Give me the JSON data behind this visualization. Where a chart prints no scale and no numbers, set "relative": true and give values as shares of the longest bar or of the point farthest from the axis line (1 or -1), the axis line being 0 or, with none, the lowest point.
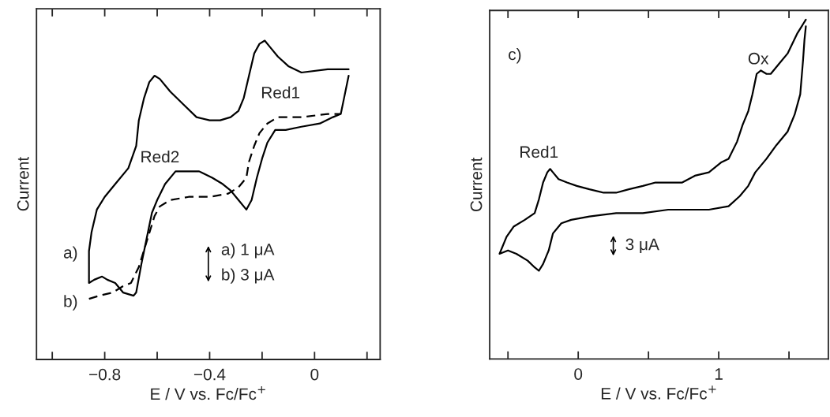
{
  "chart_data": [
    {
      "type": "line",
      "relative": true,
      "xlabel": "E / V vs. Fc/Fc$^{+}$",
      "ylabel": "Current",
      "xlim": [
        -1.06,
        0.25
      ],
      "xticks": [
        {
          "value": -1.0,
          "label": null
        },
        {
          "value": -0.8,
          "label": "−0.8"
        },
        {
          "value": -0.6,
          "label": null
        },
        {
          "value": -0.4,
          "label": "−0.4"
        },
        {
          "value": -0.2,
          "label": null
        },
        {
          "value": 0,
          "label": "0"
        },
        {
          "value": 0.2,
          "label": null
        }
      ],
      "series": [
        {
          "color": "#000000",
          "line_style": "solid",
          "x": [
            0.13,
            0.05,
            -0.05,
            -0.1,
            -0.14,
            -0.17,
            -0.19,
            -0.21,
            -0.23,
            -0.25,
            -0.27,
            -0.29,
            -0.32,
            -0.36,
            -0.4,
            -0.45,
            -0.5,
            -0.55,
            -0.59,
            -0.61,
            -0.63,
            -0.65,
            -0.67,
            -0.68,
            -0.71,
            -0.76,
            -0.8,
            -0.83,
            -0.85,
            -0.86,
            -0.86,
            -0.86,
            -0.84,
            -0.81,
            -0.79,
            -0.76,
            -0.73,
            -0.69,
            -0.68,
            -0.66,
            -0.64,
            -0.62,
            -0.6,
            -0.57,
            -0.53,
            -0.49,
            -0.44,
            -0.39,
            -0.35,
            -0.32,
            -0.29,
            -0.26,
            -0.24,
            -0.22,
            -0.2,
            -0.18,
            -0.15,
            -0.11,
            -0.05,
            0.02,
            0.07,
            0.1,
            0.11,
            0.13
          ],
          "values": [
            0.91,
            0.91,
            0.9,
            0.92,
            0.95,
            0.98,
            1.0,
            0.99,
            0.96,
            0.89,
            0.82,
            0.78,
            0.76,
            0.75,
            0.75,
            0.76,
            0.8,
            0.84,
            0.88,
            0.89,
            0.87,
            0.82,
            0.75,
            0.67,
            0.6,
            0.55,
            0.51,
            0.47,
            0.4,
            0.34,
            0.29,
            0.24,
            0.25,
            0.26,
            0.25,
            0.24,
            0.21,
            0.2,
            0.21,
            0.3,
            0.38,
            0.46,
            0.5,
            0.55,
            0.59,
            0.59,
            0.59,
            0.57,
            0.55,
            0.53,
            0.5,
            0.47,
            0.5,
            0.57,
            0.63,
            0.68,
            0.72,
            0.72,
            0.73,
            0.74,
            0.76,
            0.77,
            0.81,
            0.89
          ]
        },
        {
          "color": "#000000",
          "line_style": "dashed",
          "x": [
            -0.86,
            -0.82,
            -0.77,
            -0.73,
            -0.7,
            -0.67,
            -0.64,
            -0.61,
            -0.59,
            -0.55,
            -0.48,
            -0.4,
            -0.33,
            -0.29,
            -0.26,
            -0.25,
            -0.23,
            -0.21,
            -0.18,
            -0.14,
            -0.05,
            0.05,
            0.1
          ],
          "values": [
            0.19,
            0.2,
            0.21,
            0.23,
            0.24,
            0.29,
            0.37,
            0.45,
            0.48,
            0.5,
            0.51,
            0.51,
            0.52,
            0.54,
            0.57,
            0.62,
            0.67,
            0.71,
            0.74,
            0.76,
            0.76,
            0.77,
            0.77
          ]
        }
      ],
      "annotations": [
        "Red1",
        "Red2",
        "a)",
        "b)",
        "a) 1 μA",
        "b) 3 μA"
      ]
    },
    {
      "type": "line",
      "relative": true,
      "xlabel": "E / V vs. Fc/Fc$^{+}$",
      "ylabel": "Current",
      "xlim": [
        -0.63,
        1.78
      ],
      "xticks": [
        {
          "value": -0.5,
          "label": null
        },
        {
          "value": 0,
          "label": "0"
        },
        {
          "value": 0.5,
          "label": null
        },
        {
          "value": 1,
          "label": "1"
        },
        {
          "value": 1.5,
          "label": null
        }
      ],
      "series": [
        {
          "color": "#000000",
          "line_style": "solid",
          "x": [
            1.62,
            1.56,
            1.49,
            1.43,
            1.37,
            1.34,
            1.3,
            1.27,
            1.24,
            1.21,
            1.17,
            1.13,
            1.07,
            1.02,
            0.93,
            0.83,
            0.74,
            0.64,
            0.55,
            0.46,
            0.36,
            0.27,
            0.18,
            0.08,
            -0.01,
            -0.08,
            -0.14,
            -0.18,
            -0.2,
            -0.22,
            -0.25,
            -0.28,
            -0.31,
            -0.38,
            -0.46,
            -0.51,
            -0.56,
            -0.5,
            -0.44,
            -0.36,
            -0.31,
            -0.28,
            -0.25,
            -0.21,
            -0.18,
            -0.12,
            -0.05,
            0.08,
            0.27,
            0.46,
            0.64,
            0.93,
            1.07,
            1.15,
            1.21,
            1.26,
            1.34,
            1.41,
            1.49,
            1.54,
            1.58,
            1.6,
            1.61,
            1.62
          ],
          "values": [
            1.0,
            0.96,
            0.9,
            0.87,
            0.84,
            0.84,
            0.85,
            0.84,
            0.78,
            0.73,
            0.69,
            0.64,
            0.59,
            0.58,
            0.55,
            0.54,
            0.52,
            0.52,
            0.52,
            0.51,
            0.5,
            0.49,
            0.49,
            0.5,
            0.51,
            0.52,
            0.53,
            0.55,
            0.56,
            0.55,
            0.52,
            0.47,
            0.43,
            0.41,
            0.39,
            0.36,
            0.31,
            0.32,
            0.31,
            0.29,
            0.27,
            0.26,
            0.28,
            0.32,
            0.37,
            0.4,
            0.41,
            0.42,
            0.43,
            0.43,
            0.44,
            0.44,
            0.45,
            0.48,
            0.51,
            0.55,
            0.59,
            0.63,
            0.67,
            0.72,
            0.78,
            0.88,
            0.94,
            0.98
          ]
        }
      ],
      "annotations": [
        "Red1",
        "Ox",
        "c)",
        "3 μA"
      ]
    }
  ]
}
